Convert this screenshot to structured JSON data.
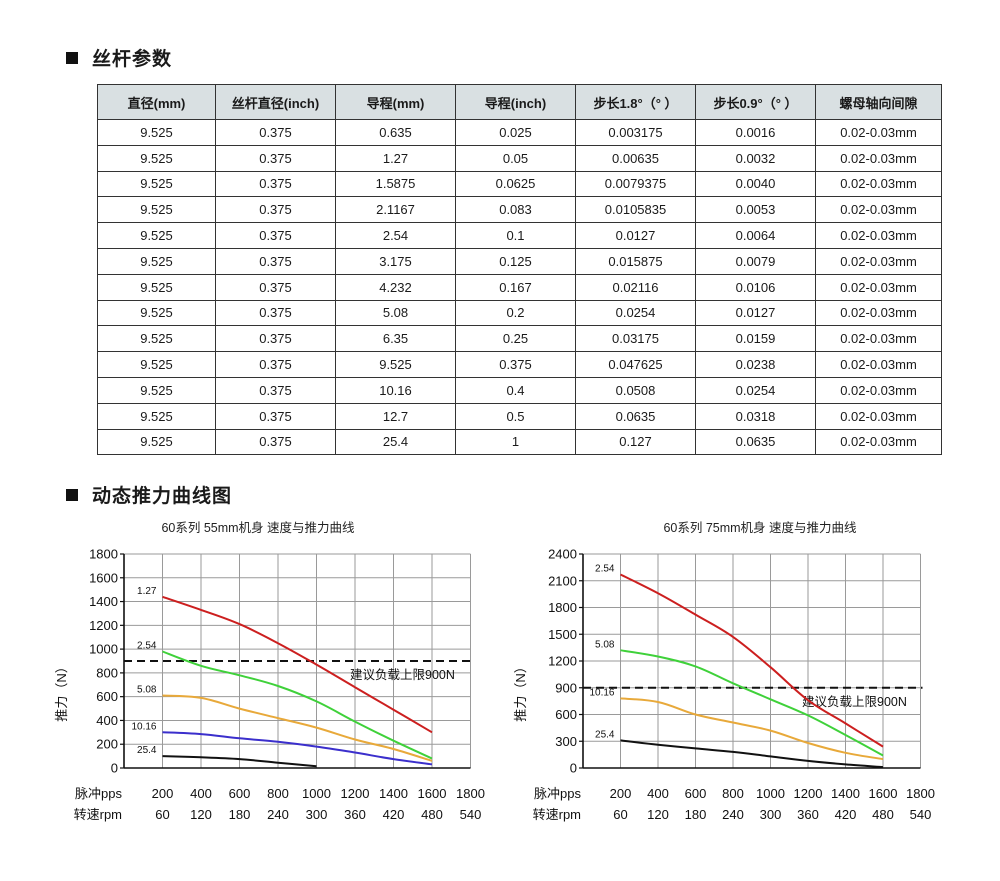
{
  "sections": {
    "params_title": "丝杆参数",
    "curves_title": "动态推力曲线图"
  },
  "table": {
    "headers": [
      "直径(mm)",
      "丝杆直径(inch)",
      "导程(mm)",
      "导程(inch)",
      "步长1.8°（° ）",
      "步长0.9°（° ）",
      "螺母轴向间隙"
    ],
    "rows": [
      [
        "9.525",
        "0.375",
        "0.635",
        "0.025",
        "0.003175",
        "0.0016",
        "0.02-0.03mm"
      ],
      [
        "9.525",
        "0.375",
        "1.27",
        "0.05",
        "0.00635",
        "0.0032",
        "0.02-0.03mm"
      ],
      [
        "9.525",
        "0.375",
        "1.5875",
        "0.0625",
        "0.0079375",
        "0.0040",
        "0.02-0.03mm"
      ],
      [
        "9.525",
        "0.375",
        "2.1167",
        "0.083",
        "0.0105835",
        "0.0053",
        "0.02-0.03mm"
      ],
      [
        "9.525",
        "0.375",
        "2.54",
        "0.1",
        "0.0127",
        "0.0064",
        "0.02-0.03mm"
      ],
      [
        "9.525",
        "0.375",
        "3.175",
        "0.125",
        "0.015875",
        "0.0079",
        "0.02-0.03mm"
      ],
      [
        "9.525",
        "0.375",
        "4.232",
        "0.167",
        "0.02116",
        "0.0106",
        "0.02-0.03mm"
      ],
      [
        "9.525",
        "0.375",
        "5.08",
        "0.2",
        "0.0254",
        "0.0127",
        "0.02-0.03mm"
      ],
      [
        "9.525",
        "0.375",
        "6.35",
        "0.25",
        "0.03175",
        "0.0159",
        "0.02-0.03mm"
      ],
      [
        "9.525",
        "0.375",
        "9.525",
        "0.375",
        "0.047625",
        "0.0238",
        "0.02-0.03mm"
      ],
      [
        "9.525",
        "0.375",
        "10.16",
        "0.4",
        "0.0508",
        "0.0254",
        "0.02-0.03mm"
      ],
      [
        "9.525",
        "0.375",
        "12.7",
        "0.5",
        "0.0635",
        "0.0318",
        "0.02-0.03mm"
      ],
      [
        "9.525",
        "0.375",
        "25.4",
        "1",
        "0.127",
        "0.0635",
        "0.02-0.03mm"
      ]
    ]
  },
  "chart_data": [
    {
      "type": "line",
      "title": "60系列 55mm机身 速度与推力曲线",
      "ylabel": "推力（N）",
      "xlabel_rows": [
        {
          "label": "脉冲pps",
          "ticks": [
            "200",
            "400",
            "600",
            "800",
            "1000",
            "1200",
            "1400",
            "1600",
            "1800"
          ]
        },
        {
          "label": "转速rpm",
          "ticks": [
            "60",
            "120",
            "180",
            "240",
            "300",
            "360",
            "420",
            "480",
            "540"
          ]
        }
      ],
      "x": [
        200,
        400,
        600,
        800,
        1000,
        1200,
        1400,
        1600
      ],
      "ylim": [
        0,
        1800
      ],
      "yticks": [
        0,
        200,
        400,
        600,
        800,
        1000,
        1200,
        1400,
        1600,
        1800
      ],
      "grid": true,
      "reference_line": {
        "y": 900,
        "label": "建议负载上限900N",
        "style": "dashed"
      },
      "series": [
        {
          "name": "1.27",
          "color": "#cc1f1f",
          "x": [
            200,
            400,
            600,
            800,
            1000,
            1200,
            1400,
            1600
          ],
          "values": [
            1440,
            1330,
            1210,
            1050,
            870,
            680,
            490,
            300
          ]
        },
        {
          "name": "2.54",
          "color": "#3fd13a",
          "x": [
            200,
            400,
            600,
            800,
            1000,
            1200,
            1400,
            1600
          ],
          "values": [
            980,
            860,
            780,
            690,
            560,
            390,
            230,
            80
          ]
        },
        {
          "name": "5.08",
          "color": "#e8a93a",
          "x": [
            200,
            400,
            600,
            800,
            1000,
            1200,
            1400,
            1600
          ],
          "values": [
            610,
            590,
            500,
            420,
            340,
            240,
            160,
            60
          ]
        },
        {
          "name": "10.16",
          "color": "#3b2fcc",
          "x": [
            200,
            400,
            600,
            800,
            1000,
            1200,
            1400,
            1600
          ],
          "values": [
            300,
            285,
            250,
            220,
            180,
            130,
            75,
            30
          ]
        },
        {
          "name": "25.4",
          "color": "#111111",
          "x": [
            200,
            400,
            600,
            800,
            1000
          ],
          "values": [
            100,
            90,
            75,
            45,
            15
          ]
        }
      ]
    },
    {
      "type": "line",
      "title": "60系列 75mm机身 速度与推力曲线",
      "ylabel": "推力（N）",
      "xlabel_rows": [
        {
          "label": "脉冲pps",
          "ticks": [
            "200",
            "400",
            "600",
            "800",
            "1000",
            "1200",
            "1400",
            "1600",
            "1800"
          ]
        },
        {
          "label": "转速rpm",
          "ticks": [
            "60",
            "120",
            "180",
            "240",
            "300",
            "360",
            "420",
            "480",
            "540"
          ]
        }
      ],
      "x": [
        200,
        400,
        600,
        800,
        1000,
        1200,
        1400,
        1600
      ],
      "ylim": [
        0,
        2400
      ],
      "yticks": [
        0,
        300,
        600,
        900,
        1200,
        1500,
        1800,
        2100,
        2400
      ],
      "grid": true,
      "reference_line": {
        "y": 900,
        "label": "建议负载上限900N",
        "style": "dashed"
      },
      "series": [
        {
          "name": "2.54",
          "color": "#cc1f1f",
          "x": [
            200,
            400,
            600,
            800,
            1000,
            1200,
            1400,
            1600
          ],
          "values": [
            2170,
            1960,
            1720,
            1470,
            1130,
            760,
            500,
            240
          ]
        },
        {
          "name": "5.08",
          "color": "#3fd13a",
          "x": [
            200,
            400,
            600,
            800,
            1000,
            1200,
            1400,
            1600
          ],
          "values": [
            1320,
            1250,
            1140,
            950,
            770,
            590,
            370,
            140
          ]
        },
        {
          "name": "10.16",
          "color": "#e8a93a",
          "x": [
            200,
            400,
            600,
            800,
            1000,
            1200,
            1400,
            1600
          ],
          "values": [
            780,
            740,
            600,
            510,
            420,
            280,
            170,
            100
          ]
        },
        {
          "name": "25.4",
          "color": "#111111",
          "x": [
            200,
            400,
            600,
            800,
            1000,
            1200,
            1400,
            1600
          ],
          "values": [
            310,
            260,
            220,
            180,
            130,
            80,
            40,
            10
          ]
        }
      ]
    }
  ]
}
